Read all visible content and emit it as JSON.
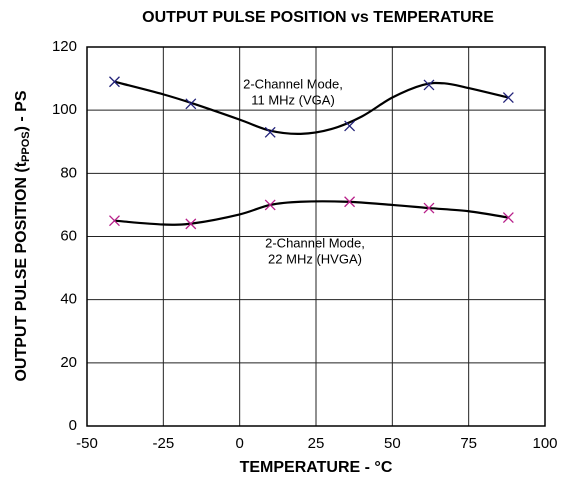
{
  "chart_data": {
    "type": "line",
    "title": "OUTPUT PULSE POSITION vs TEMPERATURE",
    "x_label": "TEMPERATURE - °C",
    "y_label": [
      "OUTPUT PULSE POSITION (t",
      "PPOS",
      ") - PS"
    ],
    "xlim": [
      -50,
      100
    ],
    "xticks": [
      -50,
      -25,
      0,
      25,
      50,
      75,
      100
    ],
    "ylim": [
      0,
      120
    ],
    "yticks": [
      0,
      20,
      40,
      60,
      80,
      100,
      120
    ],
    "grid": true,
    "series": [
      {
        "x": [
          -41,
          -16,
          10,
          36,
          62,
          88
        ],
        "values": [
          109,
          102,
          93,
          95,
          108,
          104
        ],
        "color": "#23237a"
      },
      {
        "x": [
          -41,
          -16,
          10,
          36,
          62,
          88
        ],
        "values": [
          65,
          64,
          70,
          71,
          69,
          66
        ],
        "color": "#b8208a"
      }
    ],
    "curves": [
      {
        "x": [
          -41,
          -25,
          -15,
          0,
          10,
          20,
          30,
          40,
          50,
          60,
          67,
          75,
          88
        ],
        "values": [
          109,
          105,
          102,
          97,
          93.5,
          92.5,
          94,
          98,
          104,
          108,
          108.5,
          107,
          104
        ],
        "color": "#000000"
      },
      {
        "x": [
          -41,
          -25,
          -15,
          0,
          10,
          20,
          35,
          50,
          62,
          75,
          88
        ],
        "values": [
          65,
          63.8,
          64.2,
          67,
          70,
          71,
          71,
          70,
          69,
          68,
          66
        ],
        "color": "#000000"
      }
    ],
    "annotations": [
      [
        "2-Channel Mode,",
        "11 MHz (VGA)"
      ],
      [
        "2-Channel Mode,",
        "22 MHz (HVGA)"
      ]
    ]
  }
}
